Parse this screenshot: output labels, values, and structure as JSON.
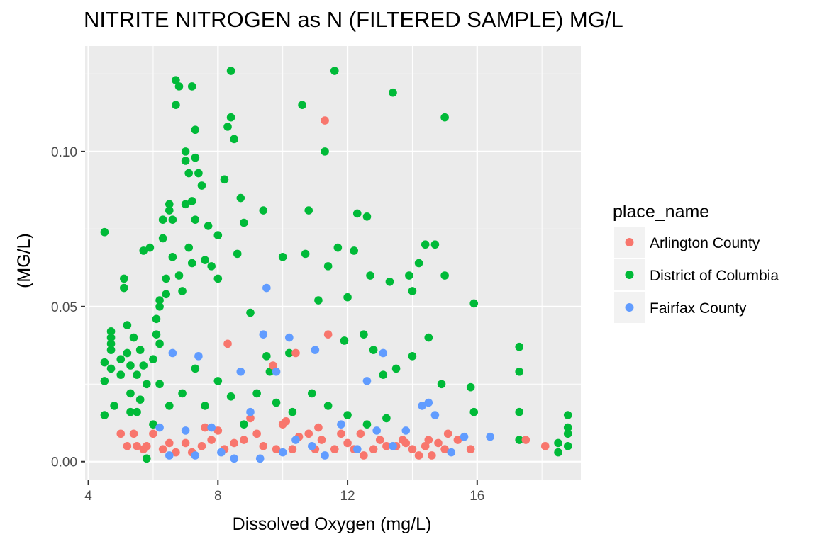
{
  "chart_data": {
    "type": "scatter",
    "title": "NITRITE NITROGEN as N (FILTERED SAMPLE) MG/L",
    "xlabel": "Dissolved Oxygen (mg/L)",
    "ylabel": "(MG/L)",
    "xlim": [
      3.9,
      19.2
    ],
    "ylim": [
      -0.006,
      0.134
    ],
    "x_ticks": [
      4,
      8,
      12,
      16
    ],
    "y_ticks": [
      0.0,
      0.05,
      0.1
    ],
    "x_tick_labels": [
      "4",
      "8",
      "12",
      "16"
    ],
    "y_tick_labels": [
      "0.00",
      "0.05",
      "0.10"
    ],
    "x_minor_ticks": [
      6,
      10,
      14,
      18
    ],
    "y_minor_ticks": [
      0.025,
      0.075,
      0.125
    ],
    "grid": true,
    "background": "#EBEBEB",
    "legend": {
      "title": "place_name",
      "position": "right",
      "entries": [
        {
          "name": "Arlington County",
          "color": "#F8766D"
        },
        {
          "name": "District of Columbia",
          "color": "#00BA38"
        },
        {
          "name": "Fairfax County",
          "color": "#619CFF"
        }
      ]
    },
    "series": [
      {
        "name": "District of Columbia",
        "color": "#00BA38",
        "points": [
          [
            4.5,
            0.074
          ],
          [
            4.5,
            0.032
          ],
          [
            4.5,
            0.026
          ],
          [
            4.5,
            0.015
          ],
          [
            4.7,
            0.042
          ],
          [
            4.7,
            0.04
          ],
          [
            4.7,
            0.038
          ],
          [
            4.7,
            0.036
          ],
          [
            4.7,
            0.03
          ],
          [
            4.8,
            0.018
          ],
          [
            5.0,
            0.033
          ],
          [
            5.0,
            0.028
          ],
          [
            5.1,
            0.059
          ],
          [
            5.1,
            0.056
          ],
          [
            5.2,
            0.044
          ],
          [
            5.2,
            0.035
          ],
          [
            5.3,
            0.031
          ],
          [
            5.3,
            0.022
          ],
          [
            5.3,
            0.016
          ],
          [
            5.4,
            0.04
          ],
          [
            5.5,
            0.028
          ],
          [
            5.5,
            0.016
          ],
          [
            5.6,
            0.036
          ],
          [
            5.7,
            0.068
          ],
          [
            5.7,
            0.031
          ],
          [
            5.8,
            0.025
          ],
          [
            5.8,
            0.001
          ],
          [
            5.9,
            0.069
          ],
          [
            6.0,
            0.033
          ],
          [
            6.1,
            0.046
          ],
          [
            6.1,
            0.041
          ],
          [
            6.2,
            0.052
          ],
          [
            6.2,
            0.05
          ],
          [
            6.2,
            0.038
          ],
          [
            6.3,
            0.078
          ],
          [
            6.3,
            0.072
          ],
          [
            6.4,
            0.059
          ],
          [
            6.4,
            0.054
          ],
          [
            6.5,
            0.083
          ],
          [
            6.5,
            0.081
          ],
          [
            6.6,
            0.078
          ],
          [
            6.6,
            0.066
          ],
          [
            6.7,
            0.123
          ],
          [
            6.7,
            0.115
          ],
          [
            6.8,
            0.121
          ],
          [
            6.8,
            0.06
          ],
          [
            6.9,
            0.055
          ],
          [
            7.0,
            0.1
          ],
          [
            7.0,
            0.097
          ],
          [
            7.0,
            0.083
          ],
          [
            7.1,
            0.093
          ],
          [
            7.1,
            0.069
          ],
          [
            7.2,
            0.121
          ],
          [
            7.2,
            0.084
          ],
          [
            7.2,
            0.064
          ],
          [
            7.3,
            0.107
          ],
          [
            7.3,
            0.098
          ],
          [
            7.3,
            0.078
          ],
          [
            7.4,
            0.093
          ],
          [
            7.5,
            0.089
          ],
          [
            7.6,
            0.065
          ],
          [
            7.7,
            0.076
          ],
          [
            7.8,
            0.063
          ],
          [
            8.0,
            0.073
          ],
          [
            8.0,
            0.059
          ],
          [
            8.2,
            0.091
          ],
          [
            8.3,
            0.108
          ],
          [
            8.4,
            0.126
          ],
          [
            8.4,
            0.111
          ],
          [
            8.5,
            0.104
          ],
          [
            8.6,
            0.067
          ],
          [
            8.7,
            0.085
          ],
          [
            8.8,
            0.077
          ],
          [
            9.0,
            0.048
          ],
          [
            9.4,
            0.081
          ],
          [
            9.5,
            0.034
          ],
          [
            9.6,
            0.029
          ],
          [
            10.0,
            0.066
          ],
          [
            10.2,
            0.035
          ],
          [
            10.6,
            0.115
          ],
          [
            10.7,
            0.067
          ],
          [
            10.8,
            0.081
          ],
          [
            11.1,
            0.052
          ],
          [
            11.3,
            0.1
          ],
          [
            11.4,
            0.063
          ],
          [
            11.6,
            0.126
          ],
          [
            11.7,
            0.069
          ],
          [
            11.9,
            0.039
          ],
          [
            12.0,
            0.053
          ],
          [
            12.2,
            0.068
          ],
          [
            12.3,
            0.08
          ],
          [
            12.5,
            0.041
          ],
          [
            12.6,
            0.079
          ],
          [
            12.7,
            0.06
          ],
          [
            12.8,
            0.036
          ],
          [
            13.1,
            0.028
          ],
          [
            13.3,
            0.058
          ],
          [
            13.4,
            0.119
          ],
          [
            13.5,
            0.03
          ],
          [
            13.9,
            0.06
          ],
          [
            14.0,
            0.055
          ],
          [
            14.0,
            0.034
          ],
          [
            14.2,
            0.064
          ],
          [
            14.4,
            0.07
          ],
          [
            14.5,
            0.04
          ],
          [
            14.7,
            0.07
          ],
          [
            14.9,
            0.025
          ],
          [
            15.0,
            0.111
          ],
          [
            15.0,
            0.06
          ],
          [
            15.8,
            0.024
          ],
          [
            15.9,
            0.051
          ],
          [
            15.9,
            0.016
          ],
          [
            17.3,
            0.037
          ],
          [
            17.3,
            0.029
          ],
          [
            17.3,
            0.016
          ],
          [
            17.3,
            0.007
          ],
          [
            18.5,
            0.006
          ],
          [
            18.5,
            0.003
          ],
          [
            18.8,
            0.015
          ],
          [
            18.8,
            0.011
          ],
          [
            18.8,
            0.009
          ],
          [
            18.8,
            0.005
          ],
          [
            6.2,
            0.025
          ],
          [
            6.5,
            0.018
          ],
          [
            6.9,
            0.022
          ],
          [
            7.3,
            0.03
          ],
          [
            7.6,
            0.018
          ],
          [
            8.0,
            0.026
          ],
          [
            8.4,
            0.021
          ],
          [
            8.8,
            0.012
          ],
          [
            9.2,
            0.022
          ],
          [
            9.8,
            0.019
          ],
          [
            10.3,
            0.016
          ],
          [
            10.9,
            0.022
          ],
          [
            11.4,
            0.018
          ],
          [
            12.0,
            0.015
          ],
          [
            12.6,
            0.012
          ],
          [
            13.2,
            0.014
          ],
          [
            5.6,
            0.02
          ],
          [
            6.0,
            0.012
          ]
        ]
      },
      {
        "name": "Arlington County",
        "color": "#F8766D",
        "points": [
          [
            5.0,
            0.009
          ],
          [
            5.2,
            0.005
          ],
          [
            5.4,
            0.009
          ],
          [
            5.5,
            0.005
          ],
          [
            5.7,
            0.004
          ],
          [
            5.8,
            0.005
          ],
          [
            6.3,
            0.004
          ],
          [
            6.7,
            0.003
          ],
          [
            7.0,
            0.006
          ],
          [
            7.2,
            0.003
          ],
          [
            7.5,
            0.005
          ],
          [
            7.8,
            0.007
          ],
          [
            8.0,
            0.01
          ],
          [
            8.2,
            0.004
          ],
          [
            8.3,
            0.038
          ],
          [
            8.5,
            0.006
          ],
          [
            8.8,
            0.007
          ],
          [
            9.2,
            0.009
          ],
          [
            9.4,
            0.005
          ],
          [
            9.7,
            0.031
          ],
          [
            9.8,
            0.004
          ],
          [
            10.0,
            0.012
          ],
          [
            10.3,
            0.004
          ],
          [
            10.4,
            0.035
          ],
          [
            10.5,
            0.008
          ],
          [
            10.8,
            0.009
          ],
          [
            11.0,
            0.004
          ],
          [
            11.2,
            0.007
          ],
          [
            11.3,
            0.11
          ],
          [
            11.4,
            0.041
          ],
          [
            11.6,
            0.004
          ],
          [
            11.8,
            0.009
          ],
          [
            12.0,
            0.006
          ],
          [
            12.2,
            0.004
          ],
          [
            12.5,
            0.002
          ],
          [
            12.8,
            0.004
          ],
          [
            13.0,
            0.007
          ],
          [
            13.2,
            0.005
          ],
          [
            13.5,
            0.005
          ],
          [
            13.8,
            0.006
          ],
          [
            14.0,
            0.004
          ],
          [
            14.2,
            0.002
          ],
          [
            14.4,
            0.005
          ],
          [
            14.6,
            0.002
          ],
          [
            14.8,
            0.006
          ],
          [
            15.1,
            0.009
          ],
          [
            15.4,
            0.007
          ],
          [
            15.8,
            0.004
          ],
          [
            17.5,
            0.007
          ],
          [
            18.1,
            0.005
          ],
          [
            6.0,
            0.009
          ],
          [
            6.5,
            0.006
          ],
          [
            7.6,
            0.011
          ],
          [
            9.0,
            0.014
          ],
          [
            10.1,
            0.013
          ],
          [
            11.1,
            0.011
          ],
          [
            12.4,
            0.009
          ],
          [
            13.7,
            0.007
          ],
          [
            14.5,
            0.007
          ],
          [
            15.0,
            0.004
          ]
        ]
      },
      {
        "name": "Fairfax County",
        "color": "#619CFF",
        "points": [
          [
            6.2,
            0.011
          ],
          [
            6.5,
            0.002
          ],
          [
            6.6,
            0.035
          ],
          [
            7.0,
            0.01
          ],
          [
            7.3,
            0.002
          ],
          [
            7.4,
            0.034
          ],
          [
            7.8,
            0.011
          ],
          [
            8.1,
            0.003
          ],
          [
            8.5,
            0.001
          ],
          [
            8.7,
            0.029
          ],
          [
            9.0,
            0.016
          ],
          [
            9.3,
            0.001
          ],
          [
            9.4,
            0.041
          ],
          [
            9.5,
            0.056
          ],
          [
            9.8,
            0.029
          ],
          [
            10.0,
            0.003
          ],
          [
            10.2,
            0.04
          ],
          [
            10.4,
            0.007
          ],
          [
            10.9,
            0.005
          ],
          [
            11.0,
            0.036
          ],
          [
            11.3,
            0.002
          ],
          [
            11.8,
            0.012
          ],
          [
            12.3,
            0.004
          ],
          [
            12.6,
            0.026
          ],
          [
            12.9,
            0.01
          ],
          [
            13.1,
            0.035
          ],
          [
            13.4,
            0.005
          ],
          [
            13.8,
            0.01
          ],
          [
            14.3,
            0.018
          ],
          [
            14.5,
            0.019
          ],
          [
            14.7,
            0.015
          ],
          [
            15.2,
            0.003
          ],
          [
            15.6,
            0.008
          ],
          [
            16.4,
            0.008
          ]
        ]
      }
    ]
  }
}
